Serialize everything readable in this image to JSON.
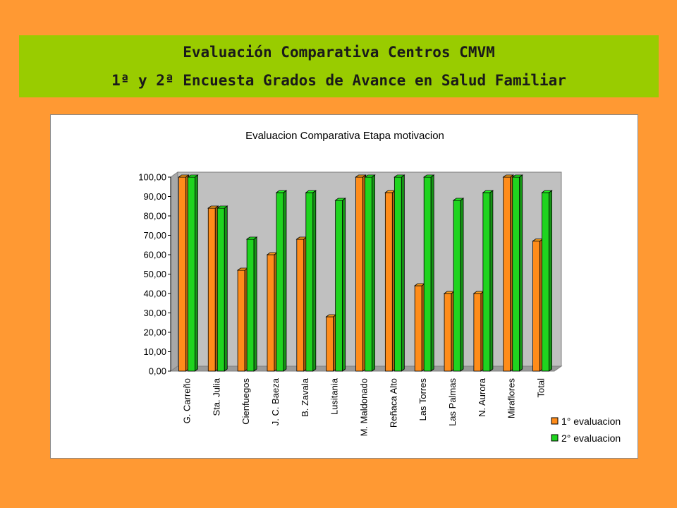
{
  "header": {
    "line1": "Evaluación Comparativa Centros CMVM",
    "line2": "1ª y 2ª Encuesta Grados de Avance en Salud Familiar"
  },
  "colors": {
    "background": "#FF9933",
    "banner": "#99CC00",
    "series1": "#FF8C1A",
    "series2": "#1FD41F",
    "plot_bg": "#C0C0C0"
  },
  "chart_data": {
    "type": "bar",
    "title": "Evaluacion Comparativa Etapa motivacion",
    "categories": [
      "G. Carreño",
      "Sta. Julia",
      "Cienfuegos",
      "J. C. Baeza",
      "B. Zavala",
      "Lusitania",
      "M. Maldonado",
      "Reñaca Alto",
      "Las Torres",
      "Las Palmas",
      "N. Aurora",
      "Miraflores",
      "Total"
    ],
    "series": [
      {
        "name": "1° evaluacion",
        "values": [
          100,
          84,
          52,
          60,
          68,
          28,
          100,
          92,
          44,
          40,
          40,
          100,
          67
        ]
      },
      {
        "name": "2° evaluacion",
        "values": [
          100,
          84,
          68,
          92,
          92,
          88,
          100,
          100,
          100,
          88,
          92,
          100,
          92
        ]
      }
    ],
    "ylim": [
      0,
      100
    ],
    "yticks": [
      "0,00",
      "10,00",
      "20,00",
      "30,00",
      "40,00",
      "50,00",
      "60,00",
      "70,00",
      "80,00",
      "90,00",
      "100,00"
    ],
    "grid": false,
    "legend": "bottom-right"
  }
}
